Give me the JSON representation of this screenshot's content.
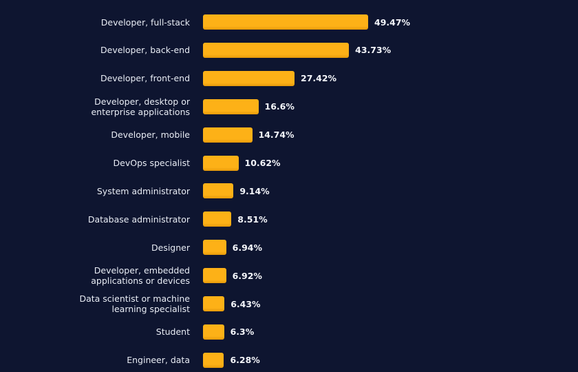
{
  "chart_data": {
    "type": "bar",
    "orientation": "horizontal",
    "title": "",
    "xlabel": "",
    "ylabel": "",
    "grid": false,
    "value_suffix": "%",
    "bar_color": "#fdb117",
    "background_color": "#0e1530",
    "categories": [
      [
        "Developer, full-stack"
      ],
      [
        "Developer, back-end"
      ],
      [
        "Developer, front-end"
      ],
      [
        "Developer, desktop or",
        "enterprise applications"
      ],
      [
        "Developer, mobile"
      ],
      [
        "DevOps specialist"
      ],
      [
        "System administrator"
      ],
      [
        "Database administrator"
      ],
      [
        "Designer"
      ],
      [
        "Developer, embedded",
        "applications or devices"
      ],
      [
        "Data scientist or machine",
        "learning specialist"
      ],
      [
        "Student"
      ],
      [
        "Engineer, data"
      ]
    ],
    "values": [
      49.47,
      43.73,
      27.42,
      16.6,
      14.74,
      10.62,
      9.14,
      8.51,
      6.94,
      6.92,
      6.43,
      6.3,
      6.28
    ],
    "data_labels": [
      "49.47%",
      "43.73%",
      "27.42%",
      "16.6%",
      "14.74%",
      "10.62%",
      "9.14%",
      "8.51%",
      "6.94%",
      "6.92%",
      "6.43%",
      "6.3%",
      "6.28%"
    ]
  }
}
